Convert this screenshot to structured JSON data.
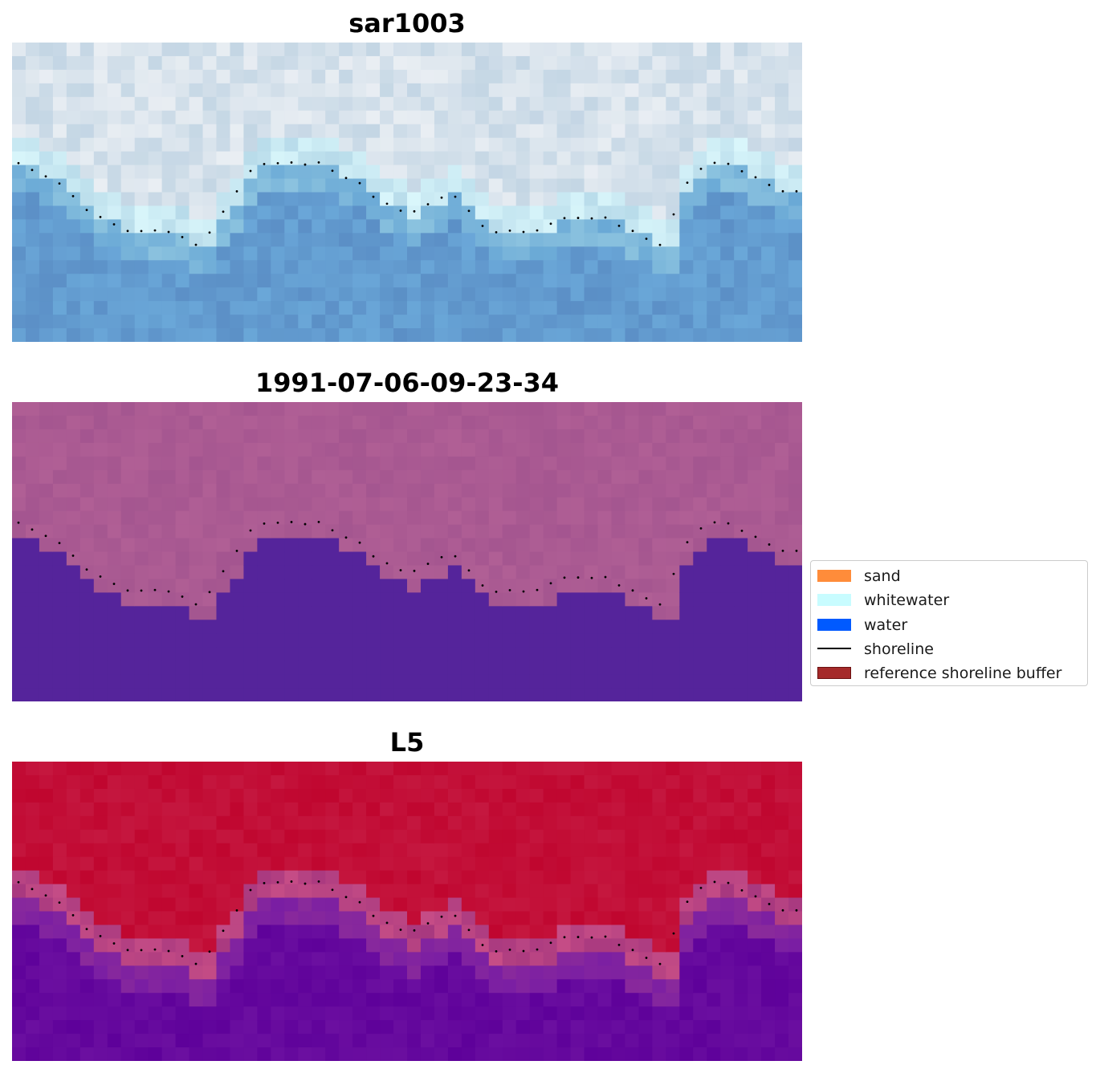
{
  "panels": [
    {
      "title": "sar1003",
      "type": "rgb"
    },
    {
      "title": "1991-07-06-09-23-34",
      "type": "classified"
    },
    {
      "title": "L5",
      "type": "index"
    }
  ],
  "legend": {
    "placement": "center-right",
    "items": [
      {
        "label": "sand",
        "color": "#ff8c3a",
        "kind": "patch"
      },
      {
        "label": "whitewater",
        "color": "#c8fcff",
        "kind": "patch"
      },
      {
        "label": "water",
        "color": "#005aff",
        "kind": "patch"
      },
      {
        "label": "shoreline",
        "color": "#000000",
        "kind": "line"
      },
      {
        "label": "reference shoreline buffer",
        "color": "#a52a2a",
        "kind": "patch"
      }
    ]
  },
  "colors": {
    "water_class": "#55249b",
    "nonwater_class": "#b05f95",
    "index_high": "#c0062f",
    "index_low": "#5e019a",
    "shoreline_dots": "#000000"
  }
}
